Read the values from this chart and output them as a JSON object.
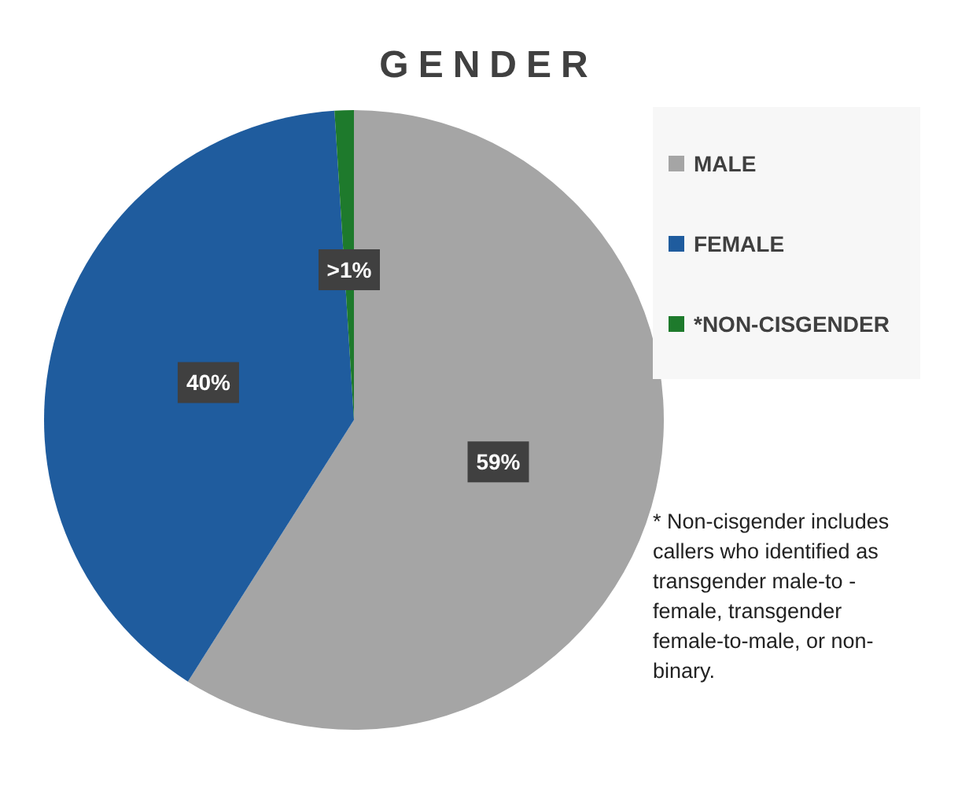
{
  "chart_data": {
    "type": "pie",
    "title": "GENDER",
    "categories": [
      "MALE",
      "FEMALE",
      "*NON-CISGENDER"
    ],
    "values": [
      59,
      40,
      1
    ],
    "colors": [
      "#a5a5a5",
      "#1f5c9e",
      "#1e7a2c"
    ],
    "value_labels": [
      "59%",
      "40%",
      ">1%"
    ],
    "legend": "top right",
    "annotations": [
      "* Non-cisgender includes callers who identified as transgender male-to - female, transgender female-to-male, or non-binary."
    ]
  }
}
